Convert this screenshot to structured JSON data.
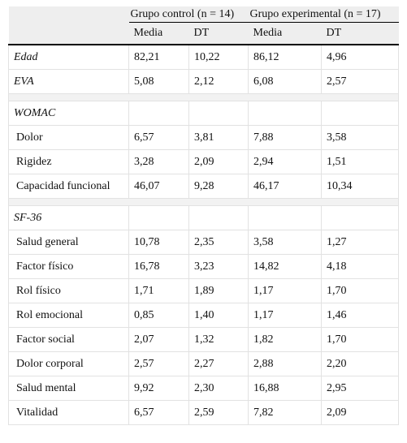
{
  "table": {
    "groups": [
      "Grupo control (n = 14)",
      "Grupo experimental (n = 17)"
    ],
    "subheaders": [
      "Media",
      "DT",
      "Media",
      "DT"
    ],
    "sections": [
      {
        "rows": [
          {
            "label": "Edad",
            "values": [
              "82,21",
              "10,22",
              "86,12",
              "4,96"
            ]
          },
          {
            "label": "EVA",
            "values": [
              "5,08",
              "2,12",
              "6,08",
              "2,57"
            ]
          }
        ]
      },
      {
        "title": "WOMAC",
        "rows": [
          {
            "label": "Dolor",
            "values": [
              "6,57",
              "3,81",
              "7,88",
              "3,58"
            ]
          },
          {
            "label": "Rigidez",
            "values": [
              "3,28",
              "2,09",
              "2,94",
              "1,51"
            ]
          },
          {
            "label": "Capacidad funcional",
            "values": [
              "46,07",
              "9,28",
              "46,17",
              "10,34"
            ]
          }
        ]
      },
      {
        "title": "SF-36",
        "rows": [
          {
            "label": "Salud general",
            "values": [
              "10,78",
              "2,35",
              "3,58",
              "1,27"
            ]
          },
          {
            "label": "Factor físico",
            "values": [
              "16,78",
              "3,23",
              "14,82",
              "4,18"
            ]
          },
          {
            "label": "Rol físico",
            "values": [
              "1,71",
              "1,89",
              "1,17",
              "1,70"
            ]
          },
          {
            "label": "Rol emocional",
            "values": [
              "0,85",
              "1,40",
              "1,17",
              "1,46"
            ]
          },
          {
            "label": "Factor social",
            "values": [
              "2,07",
              "1,32",
              "1,82",
              "1,70"
            ]
          },
          {
            "label": "Dolor corporal",
            "values": [
              "2,57",
              "2,27",
              "2,88",
              "2,20"
            ]
          },
          {
            "label": "Salud mental",
            "values": [
              "9,92",
              "2,30",
              "16,88",
              "2,95"
            ]
          },
          {
            "label": "Vitalidad",
            "values": [
              "6,57",
              "2,59",
              "7,82",
              "2,09"
            ]
          }
        ]
      }
    ]
  }
}
